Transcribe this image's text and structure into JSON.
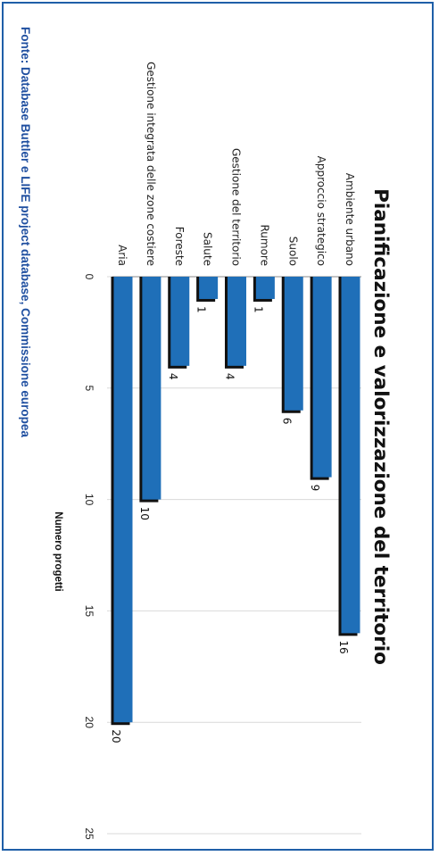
{
  "source_note": "Fonte: Database Buttler e LIFE project database, Commissione europea",
  "colors": {
    "frame": "#1f5fa8",
    "bar": "#1f6fb8",
    "bar_shadow": "#111111",
    "source_text": "#1f4fa0",
    "grid": "#d9d9d9"
  },
  "chart_data": {
    "type": "bar",
    "orientation": "horizontal",
    "title": "Pianificazione e valorizzazione del territorio",
    "xlabel": "Numero progetti",
    "ylabel": "",
    "xlim": [
      0,
      25
    ],
    "x_ticks": [
      0,
      5,
      10,
      15,
      20,
      25
    ],
    "grid": true,
    "categories": [
      "Ambiente urbano",
      "Approccio strategico",
      "Suolo",
      "Rumore",
      "Gestione del territorio",
      "Salute",
      "Foreste",
      "Gestione integrata delle zone costiere",
      "Aria"
    ],
    "values": [
      16,
      9,
      6,
      1,
      4,
      1,
      4,
      10,
      20
    ],
    "data_labels": [
      "16",
      "9",
      "6",
      "1",
      "4",
      "1",
      "4",
      "10",
      "20"
    ]
  }
}
